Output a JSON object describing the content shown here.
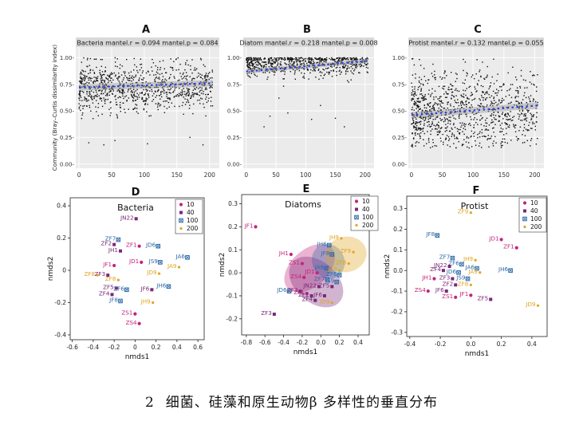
{
  "caption": {
    "number": "2",
    "text": "细菌、硅藻和原生动物β 多样性的垂直分布"
  },
  "common": {
    "top_ylabel": "Community (Bray–Curtis dissimilarity index)",
    "bottom_xlabel": "nmds1",
    "bottom_ylabel": "nmds2",
    "legend_labels": [
      "10",
      "40",
      "100",
      "200"
    ],
    "colors": {
      "10": "#c4247a",
      "40": "#7a2877",
      "100": "#2e6aa8",
      "200": "#e0a420"
    }
  },
  "chart_data": [
    {
      "type": "scatter",
      "panel": "A",
      "title": "Bacteria mantel.r = 0.094 mantel.p = 0.084",
      "xlim": [
        -5,
        215
      ],
      "ylim": [
        -0.04,
        1.1
      ],
      "xticks": [
        0,
        50,
        100,
        150,
        200
      ],
      "yticks": [
        0,
        0.25,
        0.5,
        0.75,
        1.0
      ],
      "ytick_labels": [
        "0.00-",
        "0.25-",
        "0.50-",
        "0.75-",
        "1.00-"
      ],
      "point_cloud": {
        "seed": 11,
        "n": 900,
        "center": 0.73,
        "spread": 0.12,
        "ymax": 1.0,
        "outliers": [
          [
            15,
            0.2
          ],
          [
            38,
            0.18
          ],
          [
            55,
            0.22
          ],
          [
            105,
            0.19
          ],
          [
            170,
            0.25
          ],
          [
            190,
            0.18
          ]
        ]
      },
      "trend": {
        "slope_start": 0.72,
        "slope_end": 0.76,
        "band": 0.03
      }
    },
    {
      "type": "scatter",
      "panel": "B",
      "title": "Diatom mantel.r = 0.218 mantel.p = 0.008",
      "xlim": [
        -5,
        215
      ],
      "ylim": [
        -0.04,
        1.1
      ],
      "xticks": [
        0,
        50,
        100,
        150,
        200
      ],
      "yticks": [
        0,
        0.25,
        0.5,
        0.75,
        1.0
      ],
      "ytick_labels": [
        "0.00-",
        "0.25-",
        "0.50-",
        "0.75-",
        "1.00-"
      ],
      "point_cloud": {
        "seed": 23,
        "n": 700,
        "center": 0.95,
        "spread": 0.06,
        "ymax": 1.0,
        "outliers": [
          [
            30,
            0.35
          ],
          [
            40,
            0.45
          ],
          [
            70,
            0.48
          ],
          [
            110,
            0.42
          ],
          [
            150,
            0.43
          ],
          [
            165,
            0.35
          ],
          [
            55,
            0.62
          ],
          [
            125,
            0.55
          ]
        ]
      },
      "trend": {
        "slope_start": 0.87,
        "slope_end": 0.97,
        "band": 0.02
      }
    },
    {
      "type": "scatter",
      "panel": "C",
      "title": "Protist mantel.r = 0.132 mantel.p = 0.055",
      "xlim": [
        -5,
        215
      ],
      "ylim": [
        -0.04,
        1.1
      ],
      "xticks": [
        0,
        50,
        100,
        150,
        200
      ],
      "yticks": [
        0,
        0.25,
        0.5,
        0.75,
        1.0
      ],
      "ytick_labels": [
        "0.00-",
        "0.25-",
        "0.50-",
        "0.75-",
        "1.00-"
      ],
      "point_cloud": {
        "seed": 37,
        "n": 1000,
        "center": 0.5,
        "spread": 0.2,
        "ymax": 1.0,
        "outliers": []
      },
      "trend": {
        "slope_start": 0.46,
        "slope_end": 0.55,
        "band": 0.03
      }
    },
    {
      "type": "scatter",
      "panel": "D",
      "title": "Bacteria",
      "xlim": [
        -0.62,
        0.66
      ],
      "ylim": [
        -0.43,
        0.45
      ],
      "xticks": [
        -0.6,
        -0.4,
        -0.2,
        0.0,
        0.2,
        0.4,
        0.6
      ],
      "xtick_labels": [
        "-0.6",
        "-0.4",
        "-0.2",
        "0",
        "0.2",
        "0.4",
        "0.6"
      ],
      "yticks": [
        -0.4,
        -0.2,
        0.0,
        0.2,
        0.4
      ],
      "ytick_labels": [
        "-0.4",
        "-0.2",
        "0",
        "0.2",
        "0.4"
      ],
      "points": [
        {
          "label": "JN22",
          "group": "40",
          "x": 0.01,
          "y": 0.32
        },
        {
          "label": "ZF7",
          "group": "100",
          "x": -0.16,
          "y": 0.19
        },
        {
          "label": "ZF2",
          "group": "40",
          "x": -0.2,
          "y": 0.16
        },
        {
          "label": "ZF1",
          "group": "10",
          "x": 0.04,
          "y": 0.15
        },
        {
          "label": "JH1",
          "group": "40",
          "x": -0.14,
          "y": 0.12
        },
        {
          "label": "JD6",
          "group": "100",
          "x": 0.22,
          "y": 0.15
        },
        {
          "label": "JA6",
          "group": "100",
          "x": 0.5,
          "y": 0.08
        },
        {
          "label": "JS9",
          "group": "100",
          "x": 0.24,
          "y": 0.05
        },
        {
          "label": "JF1",
          "group": "10",
          "x": -0.2,
          "y": 0.03
        },
        {
          "label": "JD1",
          "group": "10",
          "x": 0.06,
          "y": 0.05
        },
        {
          "label": "JA9",
          "group": "200",
          "x": 0.42,
          "y": 0.02
        },
        {
          "label": "JD9",
          "group": "200",
          "x": 0.23,
          "y": -0.02
        },
        {
          "label": "ZF3",
          "group": "40",
          "x": -0.26,
          "y": -0.03
        },
        {
          "label": "ZF8",
          "group": "200",
          "x": -0.36,
          "y": -0.03
        },
        {
          "label": "ZF8",
          "group": "200",
          "x": -0.16,
          "y": -0.06
        },
        {
          "label": "JH6",
          "group": "100",
          "x": 0.32,
          "y": -0.1
        },
        {
          "label": "ZF5",
          "group": "40",
          "x": -0.18,
          "y": -0.11
        },
        {
          "label": "ZF6",
          "group": "100",
          "x": -0.08,
          "y": -0.12
        },
        {
          "label": "JF6",
          "group": "40",
          "x": 0.16,
          "y": -0.12
        },
        {
          "label": "ZF4",
          "group": "40",
          "x": -0.22,
          "y": -0.15
        },
        {
          "label": "JF8",
          "group": "100",
          "x": -0.14,
          "y": -0.19
        },
        {
          "label": "JH9",
          "group": "200",
          "x": 0.17,
          "y": -0.2
        },
        {
          "label": "ZS1",
          "group": "10",
          "x": 0.0,
          "y": -0.27
        },
        {
          "label": "ZS4",
          "group": "10",
          "x": 0.04,
          "y": -0.33
        }
      ]
    },
    {
      "type": "scatter",
      "panel": "E",
      "title": "Diatoms",
      "xlim": [
        -0.85,
        0.52
      ],
      "ylim": [
        -0.27,
        0.34
      ],
      "xticks": [
        -0.8,
        -0.6,
        -0.4,
        -0.2,
        0.0,
        0.2,
        0.4
      ],
      "xtick_labels": [
        "-0.8",
        "-0.6",
        "-0.4",
        "-0.2",
        "0.0",
        "0.2",
        "0.4"
      ],
      "yticks": [
        -0.2,
        -0.1,
        0.0,
        0.1,
        0.2,
        0.3
      ],
      "ytick_labels": [
        "-0.2",
        "-0.1",
        "0.0",
        "0.1",
        "0.2",
        "0.3"
      ],
      "ellipses": [
        {
          "group": "10",
          "cx": -0.12,
          "cy": 0.02,
          "rx": 0.32,
          "ry": 0.08,
          "angle": 42
        },
        {
          "group": "40",
          "cx": -0.05,
          "cy": -0.04,
          "rx": 0.33,
          "ry": 0.09,
          "angle": -40
        },
        {
          "group": "100",
          "cx": 0.08,
          "cy": 0.05,
          "rx": 0.19,
          "ry": 0.07,
          "angle": -62
        },
        {
          "group": "200",
          "cx": 0.27,
          "cy": 0.08,
          "rx": 0.19,
          "ry": 0.09,
          "angle": -78
        }
      ],
      "points": [
        {
          "label": "JF1",
          "group": "10",
          "x": -0.7,
          "y": 0.2
        },
        {
          "label": "JH9",
          "group": "200",
          "x": 0.22,
          "y": 0.15
        },
        {
          "label": "JH6",
          "group": "100",
          "x": 0.09,
          "y": 0.12
        },
        {
          "label": "JF8",
          "group": "100",
          "x": 0.12,
          "y": 0.08
        },
        {
          "label": "JH1",
          "group": "10",
          "x": -0.32,
          "y": 0.08
        },
        {
          "label": "ZF9",
          "group": "200",
          "x": 0.35,
          "y": 0.09
        },
        {
          "label": "ZS1",
          "group": "10",
          "x": -0.2,
          "y": 0.04
        },
        {
          "label": "ZF8",
          "group": "200",
          "x": 0.3,
          "y": 0.04
        },
        {
          "label": "JA6",
          "group": "100",
          "x": 0.06,
          "y": 0.02
        },
        {
          "label": "JA9",
          "group": "200",
          "x": 0.2,
          "y": 0.01
        },
        {
          "label": "JD1",
          "group": "10",
          "x": -0.04,
          "y": 0.0
        },
        {
          "label": "ZF6",
          "group": "100",
          "x": 0.2,
          "y": -0.01
        },
        {
          "label": "ZS4",
          "group": "10",
          "x": -0.18,
          "y": -0.02
        },
        {
          "label": "ZF7",
          "group": "100",
          "x": 0.07,
          "y": -0.03
        },
        {
          "label": "JS9",
          "group": "100",
          "x": 0.17,
          "y": -0.04
        },
        {
          "label": "JN22",
          "group": "40",
          "x": -0.02,
          "y": -0.06
        },
        {
          "label": "ZF5",
          "group": "40",
          "x": 0.12,
          "y": -0.06
        },
        {
          "label": "JD6",
          "group": "100",
          "x": -0.34,
          "y": -0.08
        },
        {
          "label": "ZF3",
          "group": "40",
          "x": -0.22,
          "y": -0.08
        },
        {
          "label": "ZF1",
          "group": "10",
          "x": -0.15,
          "y": -0.09
        },
        {
          "label": "ZF2",
          "group": "40",
          "x": -0.1,
          "y": -0.1
        },
        {
          "label": "JF6",
          "group": "40",
          "x": 0.04,
          "y": -0.1
        },
        {
          "label": "ZF4",
          "group": "40",
          "x": -0.06,
          "y": -0.12
        },
        {
          "label": "JD9",
          "group": "200",
          "x": 0.12,
          "y": -0.13
        },
        {
          "label": "ZF3",
          "group": "40",
          "x": -0.5,
          "y": -0.18
        }
      ]
    },
    {
      "type": "scatter",
      "panel": "F",
      "title": "Protist",
      "xlim": [
        -0.42,
        0.5
      ],
      "ylim": [
        -0.32,
        0.36
      ],
      "xticks": [
        -0.4,
        -0.2,
        0.0,
        0.2,
        0.4
      ],
      "xtick_labels": [
        "-0.4",
        "-0.2",
        "0.0",
        "0.2",
        "0.4"
      ],
      "yticks": [
        -0.3,
        -0.2,
        -0.1,
        0.0,
        0.1,
        0.2,
        0.3
      ],
      "ytick_labels": [
        "-0.3",
        "-0.2",
        "-0.1",
        "0.0",
        "0.1",
        "0.2",
        "0.3"
      ],
      "points": [
        {
          "label": "ZF9",
          "group": "200",
          "x": 0.0,
          "y": 0.28
        },
        {
          "label": "JF8",
          "group": "100",
          "x": -0.22,
          "y": 0.17
        },
        {
          "label": "JD1",
          "group": "10",
          "x": 0.2,
          "y": 0.15
        },
        {
          "label": "ZF1",
          "group": "10",
          "x": 0.3,
          "y": 0.11
        },
        {
          "label": "ZF7",
          "group": "100",
          "x": -0.12,
          "y": 0.06
        },
        {
          "label": "JH9",
          "group": "200",
          "x": 0.03,
          "y": 0.05
        },
        {
          "label": "ZF6",
          "group": "100",
          "x": -0.06,
          "y": 0.03
        },
        {
          "label": "JN22",
          "group": "40",
          "x": -0.14,
          "y": 0.02
        },
        {
          "label": "JA6",
          "group": "100",
          "x": 0.04,
          "y": 0.01
        },
        {
          "label": "ZF4",
          "group": "40",
          "x": -0.18,
          "y": 0.0
        },
        {
          "label": "JD6",
          "group": "100",
          "x": -0.08,
          "y": -0.01
        },
        {
          "label": "JH6",
          "group": "100",
          "x": 0.26,
          "y": 0.0
        },
        {
          "label": "JA9",
          "group": "200",
          "x": 0.06,
          "y": -0.01
        },
        {
          "label": "ZF3",
          "group": "40",
          "x": -0.12,
          "y": -0.04
        },
        {
          "label": "JH1",
          "group": "10",
          "x": -0.24,
          "y": -0.04
        },
        {
          "label": "JS9",
          "group": "100",
          "x": -0.02,
          "y": -0.04
        },
        {
          "label": "ZF2",
          "group": "40",
          "x": -0.1,
          "y": -0.07
        },
        {
          "label": "ZF8",
          "group": "200",
          "x": 0.0,
          "y": -0.07
        },
        {
          "label": "ZS4",
          "group": "10",
          "x": -0.28,
          "y": -0.1
        },
        {
          "label": "JF6",
          "group": "40",
          "x": -0.16,
          "y": -0.1
        },
        {
          "label": "ZS1",
          "group": "10",
          "x": -0.1,
          "y": -0.13
        },
        {
          "label": "JF1",
          "group": "10",
          "x": 0.0,
          "y": -0.12
        },
        {
          "label": "ZF5",
          "group": "40",
          "x": 0.13,
          "y": -0.14
        },
        {
          "label": "JD9",
          "group": "200",
          "x": 0.44,
          "y": -0.17
        }
      ]
    }
  ]
}
